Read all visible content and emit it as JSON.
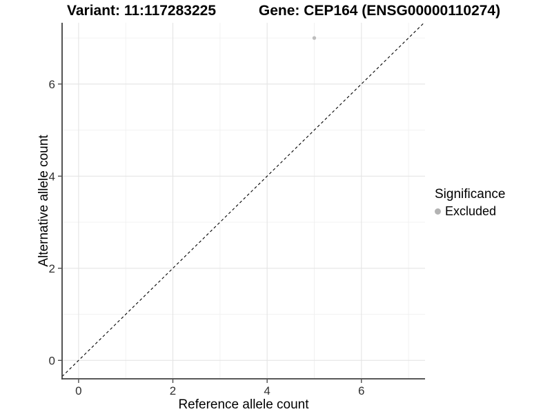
{
  "header": {
    "variant_title": "Variant: 11:117283225",
    "gene_title": "Gene: CEP164 (ENSG00000110274)"
  },
  "chart_data": {
    "type": "scatter",
    "title": "Variant: 11:117283225 — Gene: CEP164 (ENSG00000110274)",
    "xlabel": "Reference allele count",
    "ylabel": "Alternative allele count",
    "xlim": [
      -0.35,
      7.35
    ],
    "ylim": [
      -0.4,
      7.33
    ],
    "x_ticks": [
      0,
      2,
      4,
      6
    ],
    "y_ticks": [
      0,
      2,
      4,
      6
    ],
    "x_minor_gridlines": [
      1,
      3,
      5,
      7
    ],
    "y_minor_gridlines": [
      1,
      3,
      5,
      7
    ],
    "grid": true,
    "identity_line": {
      "style": "dashed",
      "equation": "y = x"
    },
    "series": [
      {
        "name": "Excluded",
        "color": "#bdbdbd",
        "points": [
          {
            "x": 5,
            "y": 7
          }
        ]
      }
    ],
    "legend": {
      "position": "right",
      "title": "Significance",
      "entries": [
        {
          "label": "Excluded",
          "color": "#b3b3b3"
        }
      ]
    }
  },
  "colors": {
    "background": "#ffffff",
    "major_grid": "#e4e4e4",
    "minor_grid": "#f0f0f0",
    "axis_line": "#404040",
    "tick_label": "#303030",
    "identity_line": "#000000",
    "point": "#bdbdbd",
    "legend_key": "#b3b3b3"
  }
}
